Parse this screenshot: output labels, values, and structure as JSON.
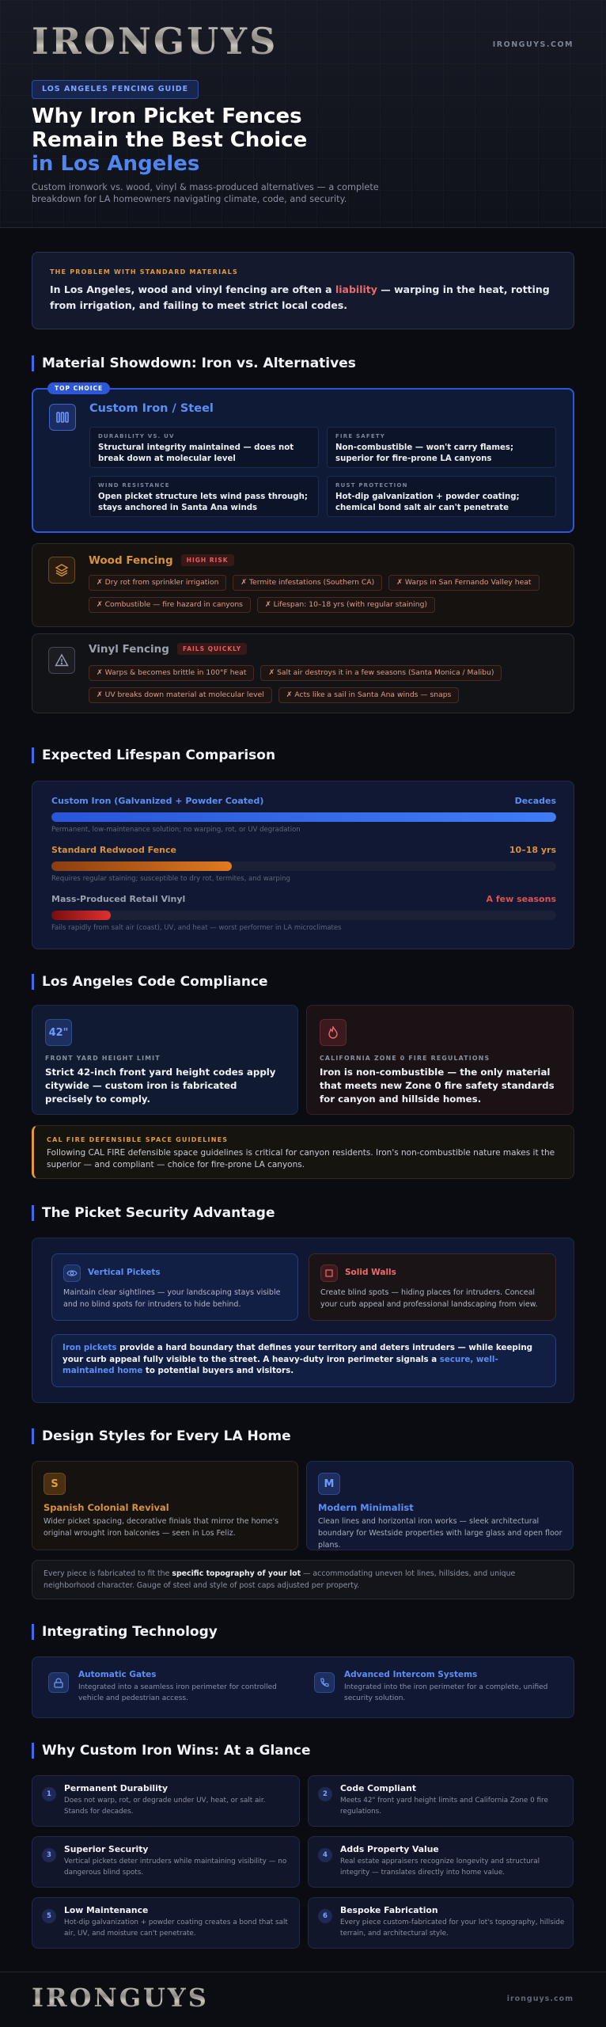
{
  "header": {
    "logo": "IRONGUYS",
    "site": "IRONGUYS.COM",
    "badge": "LOS ANGELES FENCING GUIDE",
    "title_lines": [
      "Why Iron Picket Fences",
      "Remain the Best Choice",
      "in Los Angeles"
    ],
    "subtitle": "Custom ironwork vs. wood, vinyl & mass-produced alternatives — a complete breakdown for LA homeowners navigating climate, code, and security."
  },
  "problem": {
    "label": "THE PROBLEM WITH STANDARD MATERIALS",
    "text": [
      "In Los Angeles, wood and vinyl fencing are often a ",
      "liability",
      " — warping in the heat, rotting from irrigation, and failing to meet strict local codes."
    ]
  },
  "showdown": {
    "heading": "Material Showdown: Iron vs. Alternatives",
    "iron": {
      "badge": "TOP CHOICE",
      "name": "Custom Iron / Steel",
      "cells": [
        {
          "label": "DURABILITY VS. UV",
          "text": "Structural integrity maintained — does not break down at molecular level"
        },
        {
          "label": "FIRE SAFETY",
          "text": "Non-combustible — won't carry flames; superior for fire-prone LA canyons"
        },
        {
          "label": "WIND RESISTANCE",
          "text": "Open picket structure lets wind pass through; stays anchored in Santa Ana winds"
        },
        {
          "label": "RUST PROTECTION",
          "text": "Hot-dip galvanization + powder coating; chemical bond salt air can't penetrate"
        }
      ]
    },
    "wood": {
      "name": "Wood Fencing",
      "tag": "HIGH RISK",
      "issues": [
        "✗ Dry rot from sprinkler irrigation",
        "✗ Termite infestations (Southern CA)",
        "✗ Warps in San Fernando Valley heat",
        "✗ Combustible — fire hazard in canyons",
        "✗ Lifespan: 10–18 yrs (with regular staining)"
      ]
    },
    "vinyl": {
      "name": "Vinyl Fencing",
      "tag": "FAILS QUICKLY",
      "issues": [
        "✗ Warps & becomes brittle in 100°F heat",
        "✗ Salt air destroys it in a few seasons (Santa Monica / Malibu)",
        "✗ UV breaks down material at molecular level",
        "✗ Acts like a sail in Santa Ana winds — snaps"
      ]
    }
  },
  "lifespan": {
    "heading": "Expected Lifespan Comparison",
    "rows": [
      {
        "name": "Custom Iron (Galvanized + Powder Coated)",
        "value": "Decades",
        "note": "Permanent, low-maintenance solution; no warping, rot, or UV degradation"
      },
      {
        "name": "Standard Redwood Fence",
        "value": "10–18 yrs",
        "note": "Requires regular staining; susceptible to dry rot, termites, and warping"
      },
      {
        "name": "Mass-Produced Retail Vinyl",
        "value": "A few seasons",
        "note": "Fails rapidly from salt air (coast), UV, and heat — worst performer in LA microclimates"
      }
    ]
  },
  "compliance": {
    "heading": "Los Angeles Code Compliance",
    "cards": [
      {
        "icon": "42\"",
        "label": "FRONT YARD HEIGHT LIMIT",
        "text": "Strict 42-inch front yard height codes apply citywide — custom iron is fabricated precisely to comply."
      },
      {
        "label": "CALIFORNIA ZONE 0 FIRE REGULATIONS",
        "text": "Iron is non-combustible — the only material that meets new Zone 0 fire safety standards for canyon and hillside homes."
      }
    ],
    "calfire": {
      "label": "CAL FIRE DEFENSIBLE SPACE GUIDELINES",
      "text": "Following CAL FIRE defensible space guidelines is critical for canyon residents. Iron's non-combustible nature makes it the superior — and compliant — choice for fire-prone LA canyons."
    }
  },
  "security": {
    "heading": "The Picket Security Advantage",
    "cards": [
      {
        "title": "Vertical Pickets",
        "text": "Maintain clear sightlines — your landscaping stays visible and no blind spots for intruders to hide behind."
      },
      {
        "title": "Solid Walls",
        "text": "Create blind spots — hiding places for intruders. Conceal your curb appeal and professional landscaping from view."
      }
    ],
    "summary": [
      "Iron pickets",
      " provide a hard boundary that defines your territory and deters intruders — while keeping your curb appeal fully visible to the street. A heavy-duty iron perimeter signals a ",
      "secure, well-maintained home",
      " to potential buyers and visitors."
    ]
  },
  "styles": {
    "heading": "Design Styles for Every LA Home",
    "cards": [
      {
        "icon": "S",
        "title": "Spanish Colonial Revival",
        "text": "Wider picket spacing, decorative finials that mirror the home's original wrought iron balconies — seen in Los Feliz."
      },
      {
        "icon": "M",
        "title": "Modern Minimalist",
        "text": "Clean lines and horizontal iron works — sleek architectural boundary for Westside properties with large glass and open floor plans."
      }
    ],
    "note": [
      "Every piece is fabricated to fit the ",
      "specific topography of your lot",
      " — accommodating uneven lot lines, hillsides, and unique neighborhood character. Gauge of steel and style of post caps adjusted per property."
    ]
  },
  "technology": {
    "heading": "Integrating Technology",
    "items": [
      {
        "title": "Automatic Gates",
        "text": "Integrated into a seamless iron perimeter for controlled vehicle and pedestrian access."
      },
      {
        "title": "Advanced Intercom Systems",
        "text": "Integrated into the iron perimeter for a complete, unified security solution."
      }
    ]
  },
  "wins": {
    "heading": "Why Custom Iron Wins: At a Glance",
    "items": [
      {
        "number": 1,
        "title": "Permanent Durability",
        "text": "Does not warp, rot, or degrade under UV, heat, or salt air. Stands for decades."
      },
      {
        "number": 2,
        "title": "Code Compliant",
        "text": "Meets 42\" front yard height limits and California Zone 0 fire regulations."
      },
      {
        "number": 3,
        "title": "Superior Security",
        "text": "Vertical pickets deter intruders while maintaining visibility — no dangerous blind spots."
      },
      {
        "number": 4,
        "title": "Adds Property Value",
        "text": "Real estate appraisers recognize longevity and structural integrity — translates directly into home value."
      },
      {
        "number": 5,
        "title": "Low Maintenance",
        "text": "Hot-dip galvanization + powder coating creates a bond that salt air, UV, and moisture can't penetrate."
      },
      {
        "number": 6,
        "title": "Bespoke Fabrication",
        "text": "Every piece custom-fabricated for your lot's topography, hillside terrain, and architectural style."
      }
    ]
  },
  "footer": {
    "logo": "IRONGUYS",
    "site": "ironguys.com"
  }
}
